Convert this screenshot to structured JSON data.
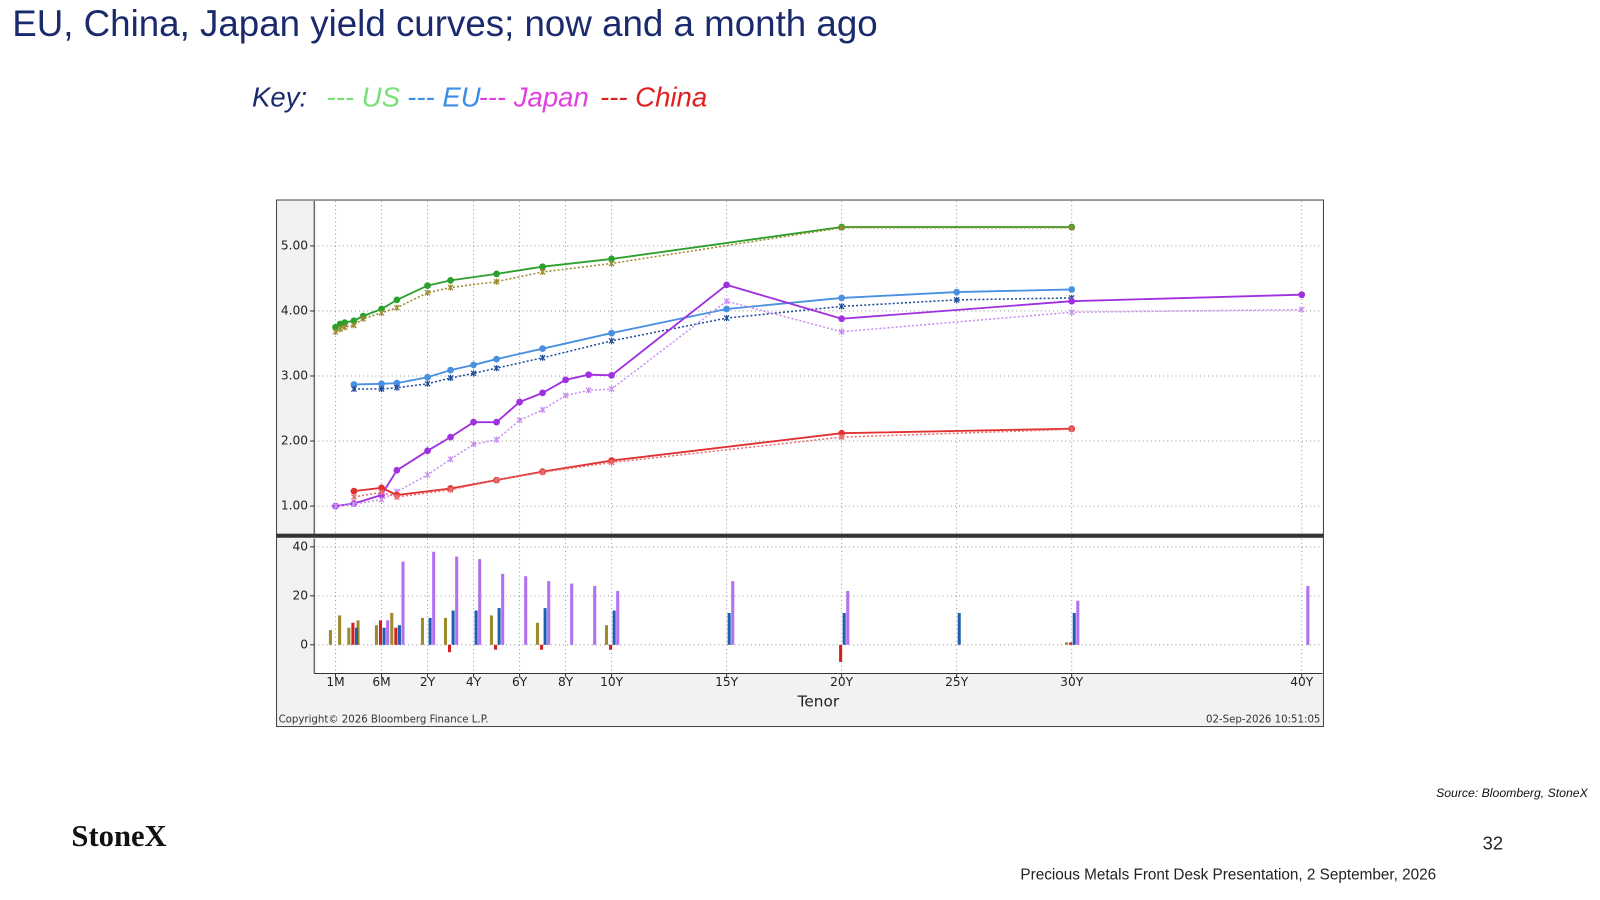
{
  "title": "EU, China, Japan yield curves; now and a month ago",
  "key": {
    "label": "Key:",
    "entries": [
      {
        "text": "---  US",
        "color": "#77e077"
      },
      {
        "text": "--- EU",
        "color": "#3a8ee6"
      },
      {
        "text": "--- Japan",
        "color": "#e040e0"
      },
      {
        "text": "--- China",
        "color": "#e02020"
      }
    ]
  },
  "copyright": "Copyright© 2026 Bloomberg Finance L.P.",
  "timestamp": "02-Sep-2026 10:51:05",
  "source": "Source: Bloomberg, StoneX",
  "logo": "StoneX",
  "page_number": "32",
  "footer": "Precious Metals Front Desk Presentation, 2 September, 2026",
  "chart_data": [
    {
      "type": "line",
      "ylim": [
        0.56,
        5.69
      ],
      "grid": true,
      "yticks": [
        {
          "value": 1,
          "label": "1.00"
        },
        {
          "value": 2,
          "label": "2.00"
        },
        {
          "value": 3,
          "label": "3.00"
        },
        {
          "value": 4,
          "label": "4.00"
        },
        {
          "value": 5,
          "label": "5.00"
        }
      ],
      "series": [
        {
          "color": "#2ca02c",
          "style": "solid",
          "marker": "circle",
          "x": [
            0.0833,
            0.125,
            0.1667,
            0.25,
            0.3333,
            0.5,
            1,
            2,
            3,
            5,
            7,
            10,
            20,
            30
          ],
          "values": [
            3.75,
            3.8,
            3.82,
            3.85,
            3.92,
            4.03,
            4.17,
            4.39,
            4.47,
            4.57,
            4.68,
            4.8,
            5.29,
            5.29
          ]
        },
        {
          "color": "#9b8a2e",
          "style": "dotted",
          "marker": "star",
          "x": [
            0.0833,
            0.125,
            0.1667,
            0.25,
            0.3333,
            0.5,
            1,
            2,
            3,
            5,
            7,
            10,
            20,
            30
          ],
          "values": [
            3.68,
            3.72,
            3.75,
            3.78,
            3.88,
            3.97,
            4.05,
            4.28,
            4.36,
            4.45,
            4.6,
            4.73,
            5.28,
            5.28
          ]
        },
        {
          "color": "#4a90e2",
          "style": "solid",
          "marker": "circle",
          "x": [
            0.25,
            0.5,
            1,
            2,
            3,
            4,
            5,
            7,
            10,
            15,
            20,
            25,
            30
          ],
          "values": [
            2.87,
            2.88,
            2.89,
            2.98,
            3.09,
            3.17,
            3.26,
            3.42,
            3.66,
            4.03,
            4.2,
            4.29,
            4.33
          ]
        },
        {
          "color": "#1f4e9a",
          "style": "dotted",
          "marker": "star",
          "x": [
            0.25,
            0.5,
            1,
            2,
            3,
            4,
            5,
            7,
            10,
            15,
            20,
            25,
            30
          ],
          "values": [
            2.8,
            2.8,
            2.82,
            2.88,
            2.97,
            3.04,
            3.12,
            3.28,
            3.54,
            3.89,
            4.07,
            4.17,
            4.2
          ]
        },
        {
          "color": "#a030e0",
          "style": "solid",
          "marker": "circle",
          "x": [
            0.0833,
            0.25,
            0.5,
            1,
            2,
            3,
            4,
            5,
            6,
            7,
            8,
            9,
            10,
            15,
            20,
            30,
            40
          ],
          "values": [
            1.0,
            1.04,
            1.17,
            1.55,
            1.85,
            2.06,
            2.29,
            2.29,
            2.6,
            2.74,
            2.94,
            3.02,
            3.01,
            4.4,
            3.88,
            4.15,
            4.25
          ]
        },
        {
          "color": "#c88ef0",
          "style": "dotted",
          "marker": "star",
          "x": [
            0.0833,
            0.25,
            0.5,
            1,
            2,
            3,
            4,
            5,
            6,
            7,
            8,
            9,
            10,
            15,
            20,
            30,
            40
          ],
          "values": [
            1.0,
            1.03,
            1.1,
            1.22,
            1.48,
            1.72,
            1.95,
            2.02,
            2.32,
            2.48,
            2.7,
            2.78,
            2.8,
            4.15,
            3.68,
            3.98,
            4.02
          ]
        },
        {
          "color": "#e03030",
          "style": "solid",
          "marker": "circle",
          "x": [
            0.25,
            0.5,
            1,
            3,
            5,
            7,
            10,
            20,
            30
          ],
          "values": [
            1.23,
            1.28,
            1.17,
            1.27,
            1.4,
            1.53,
            1.7,
            2.12,
            2.19
          ]
        },
        {
          "color": "#e87070",
          "style": "dotted",
          "marker": "star",
          "x": [
            0.25,
            0.5,
            1,
            3,
            5,
            7,
            10,
            20,
            30
          ],
          "values": [
            1.14,
            1.21,
            1.14,
            1.25,
            1.4,
            1.52,
            1.67,
            2.06,
            2.18
          ]
        }
      ]
    },
    {
      "type": "bar",
      "xlabel": "Tenor",
      "xlim": [
        -0.11,
        40.9
      ],
      "ylim": [
        -11.7,
        43.3
      ],
      "yticks": [
        0,
        20,
        40
      ],
      "grid": true,
      "xticks": [
        {
          "value": 0.0833,
          "label": "1M"
        },
        {
          "value": 0.5,
          "label": "6M"
        },
        {
          "value": 2,
          "label": "2Y"
        },
        {
          "value": 4,
          "label": "4Y"
        },
        {
          "value": 6,
          "label": "6Y"
        },
        {
          "value": 8,
          "label": "8Y"
        },
        {
          "value": 10,
          "label": "10Y"
        },
        {
          "value": 15,
          "label": "15Y"
        },
        {
          "value": 20,
          "label": "20Y"
        },
        {
          "value": 25,
          "label": "25Y"
        },
        {
          "value": 30,
          "label": "30Y"
        },
        {
          "value": 40,
          "label": "40Y"
        }
      ],
      "x": [
        0.0833,
        0.1667,
        0.25,
        0.3333,
        0.5,
        1,
        2,
        3,
        4,
        5,
        6,
        7,
        8,
        9,
        10,
        15,
        20,
        25,
        30,
        40
      ],
      "series": [
        {
          "color": "#9b8a2e",
          "values": [
            6,
            12,
            7,
            10,
            8,
            13,
            11,
            11,
            null,
            12,
            null,
            9,
            null,
            null,
            8,
            null,
            null,
            null,
            1,
            null
          ]
        },
        {
          "color": "#d02020",
          "values": [
            null,
            null,
            9,
            null,
            10,
            7,
            null,
            -3,
            null,
            -2,
            null,
            -2,
            null,
            null,
            -2,
            null,
            -7,
            null,
            1,
            null
          ]
        },
        {
          "color": "#1f5fb0",
          "values": [
            null,
            null,
            7,
            null,
            7,
            8,
            11,
            14,
            14,
            15,
            null,
            15,
            null,
            null,
            14,
            13,
            13,
            13,
            13,
            null
          ]
        },
        {
          "color": "#b070f0",
          "values": [
            null,
            null,
            null,
            null,
            10,
            34,
            38,
            36,
            35,
            29,
            28,
            26,
            25,
            24,
            22,
            26,
            22,
            null,
            18,
            24
          ]
        }
      ]
    }
  ]
}
